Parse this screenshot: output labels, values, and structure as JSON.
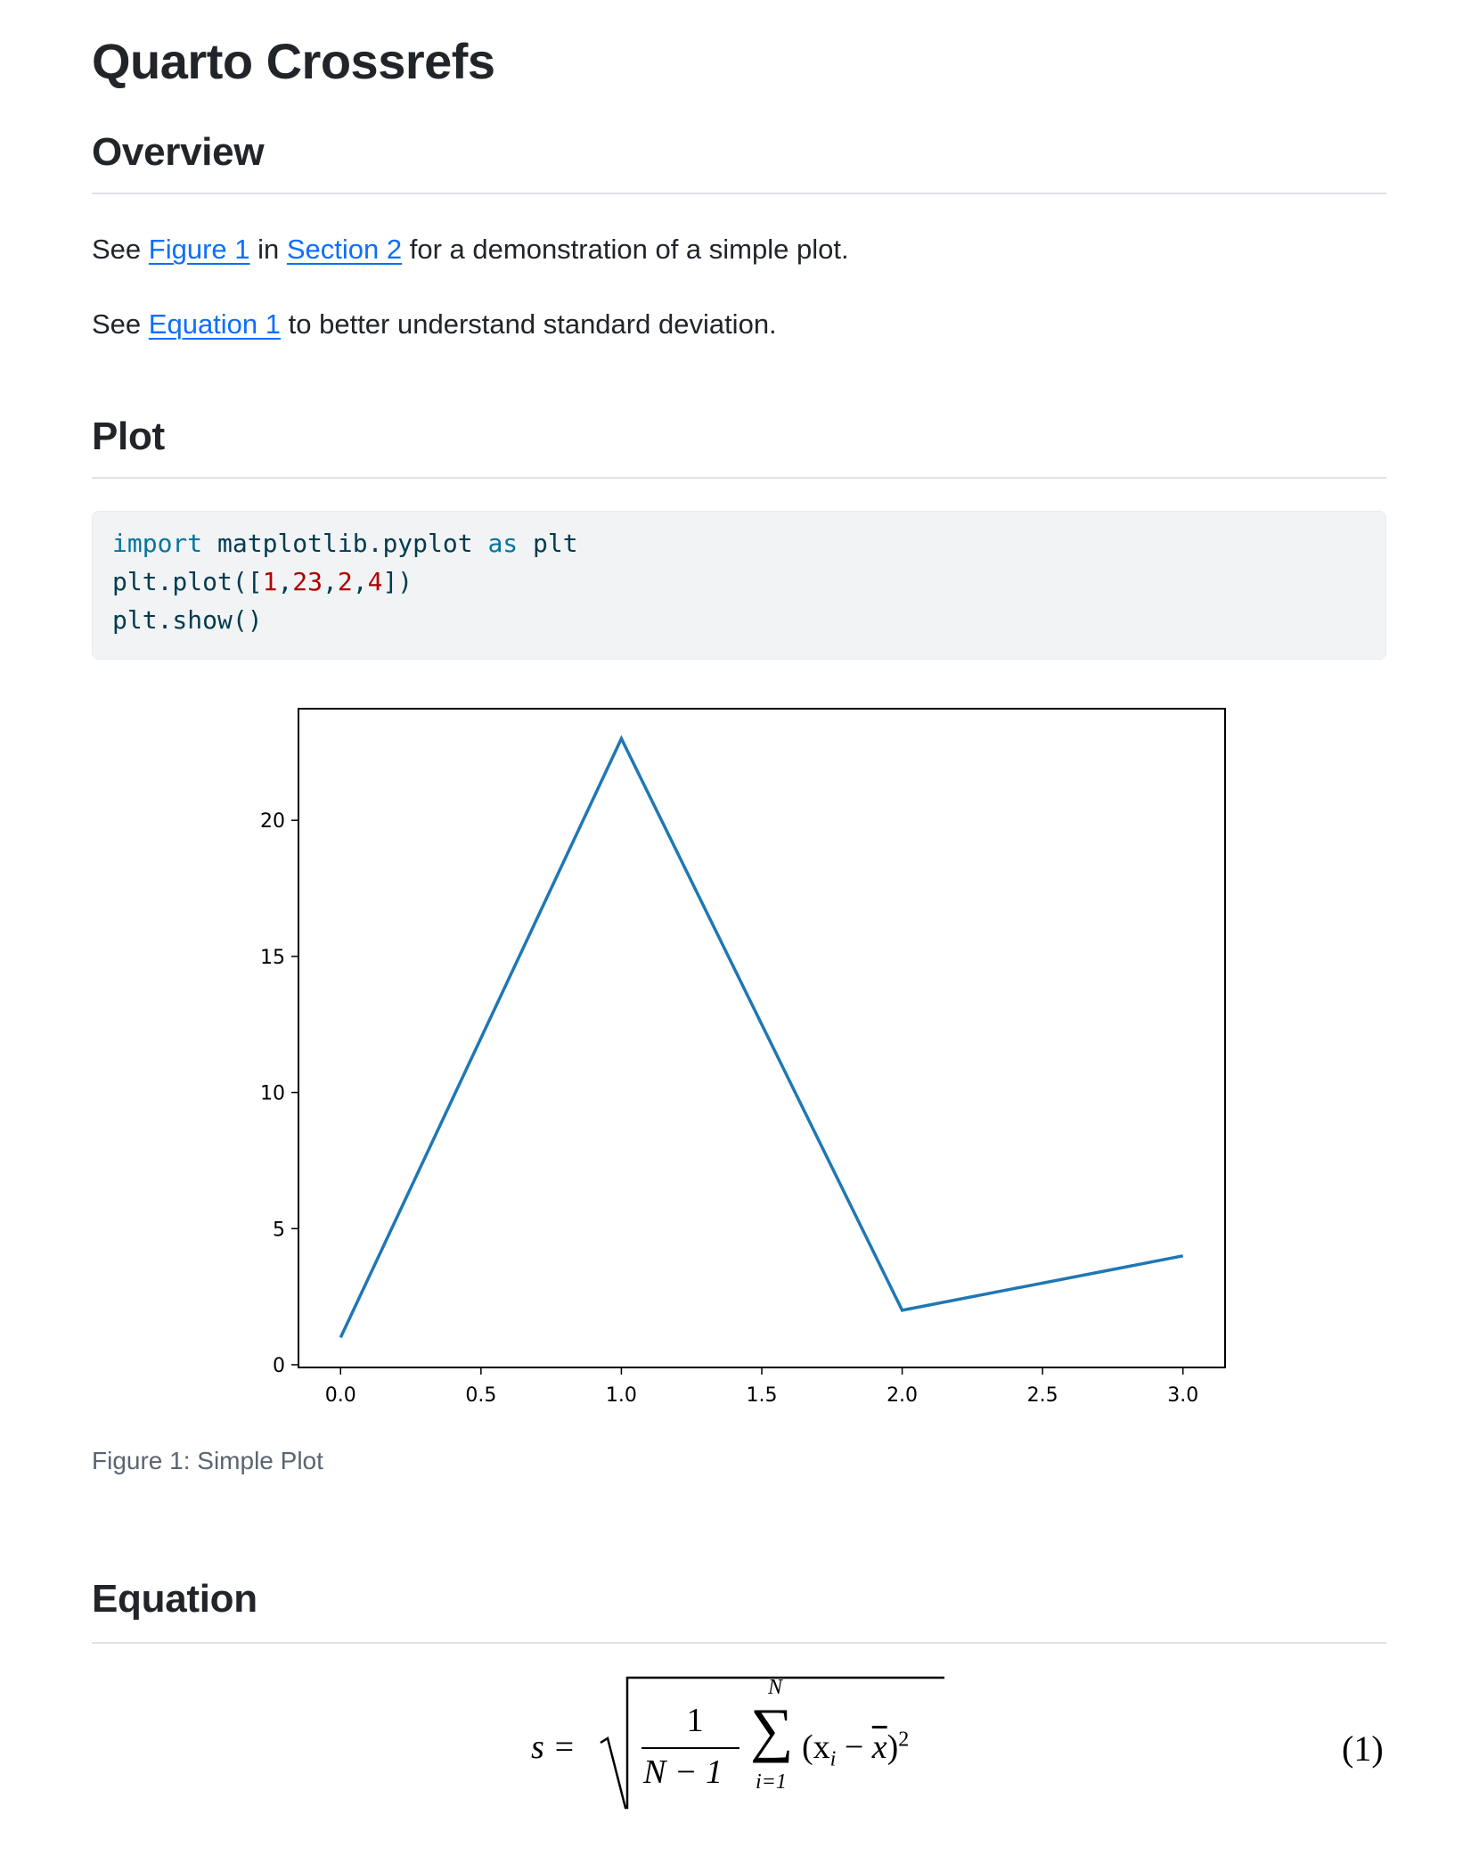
{
  "title": "Quarto Crossrefs",
  "sections": {
    "overview": {
      "heading": "Overview",
      "para1": {
        "pre": "See ",
        "link1": "Figure 1",
        "mid": " in ",
        "link2": "Section 2",
        "post": " for a demonstration of a simple plot."
      },
      "para2": {
        "pre": "See ",
        "link": "Equation 1",
        "post": " to better understand standard deviation."
      }
    },
    "plot": {
      "heading": "Plot",
      "code": {
        "line1": {
          "kw1": "import",
          "mod": " matplotlib.pyplot ",
          "kw2": "as",
          "alias": " plt"
        },
        "line2": {
          "pre": "plt.plot([",
          "n1": "1",
          "c1": ",",
          "n2": "23",
          "c2": ",",
          "n3": "2",
          "c3": ",",
          "n4": "4",
          "post": "])"
        },
        "line3": "plt.show()"
      },
      "caption": "Figure 1: Simple Plot"
    },
    "equation": {
      "heading": "Equation",
      "lhs": "s =",
      "numerator": "1",
      "denominator": "N − 1",
      "sum_upper": "N",
      "sum_lower": "i=1",
      "sum_symbol": "∑",
      "body": "(x",
      "sub": "i",
      "minus": " − ",
      "xbar": "x",
      "close": ")",
      "power": "2",
      "number": "(1)"
    }
  },
  "chart_data": {
    "type": "line",
    "x": [
      0,
      1,
      2,
      3
    ],
    "values": [
      1,
      23,
      2,
      4
    ],
    "xlim": [
      -0.15,
      3.15
    ],
    "ylim": [
      -0.1,
      24.1
    ],
    "xticks": [
      "0.0",
      "0.5",
      "1.0",
      "1.5",
      "2.0",
      "2.5",
      "3.0"
    ],
    "yticks": [
      "0",
      "5",
      "10",
      "15",
      "20"
    ],
    "grid": false,
    "color": "#1f77b4"
  }
}
